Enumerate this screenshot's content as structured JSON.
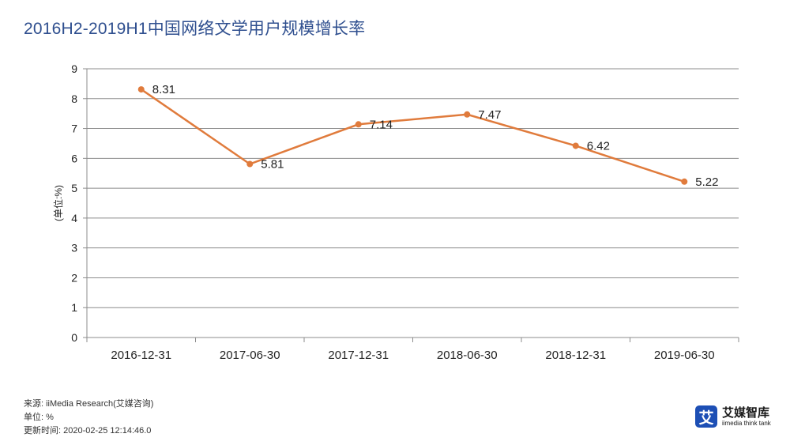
{
  "chart_data": {
    "type": "line",
    "title": "2016H2-2019H1中国网络文学用户规模增长率",
    "ylabel": "(单位:%)",
    "xlabel": "",
    "categories": [
      "2016-12-31",
      "2017-06-30",
      "2017-12-31",
      "2018-06-30",
      "2018-12-31",
      "2019-06-30"
    ],
    "series": [
      {
        "values": [
          8.31,
          5.81,
          7.14,
          7.47,
          6.42,
          5.22
        ]
      }
    ],
    "ylim": [
      0,
      9
    ],
    "yticks": [
      0,
      1,
      2,
      3,
      4,
      5,
      6,
      7,
      8,
      9
    ],
    "grid": true,
    "data_labels": true,
    "colors": {
      "line": "#e07b3c",
      "grid": "#8c8c8c",
      "title": "#2f4f8f"
    }
  },
  "footer": {
    "source": "来源: iiMedia Research(艾媒咨询)",
    "unit": "单位: %",
    "updated": "更新时间: 2020-02-25 12:14:46.0"
  },
  "brand": {
    "mark": "艾",
    "name": "艾媒智库",
    "tagline": "iimedia think tank"
  }
}
